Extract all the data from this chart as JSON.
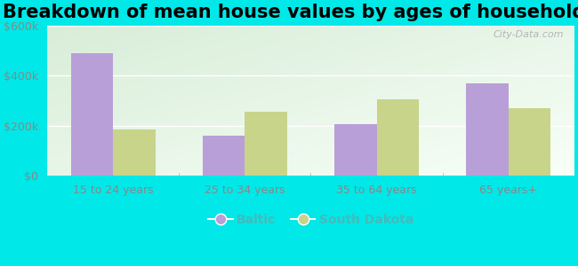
{
  "title": "Breakdown of mean house values by ages of householders",
  "categories": [
    "15 to 24 years",
    "25 to 34 years",
    "35 to 64 years",
    "65 years+"
  ],
  "baltic_values": [
    490000,
    160000,
    205000,
    370000
  ],
  "sd_values": [
    185000,
    255000,
    305000,
    270000
  ],
  "baltic_color": "#b99fd8",
  "sd_color": "#c8d48a",
  "ylim": [
    0,
    600000
  ],
  "yticks": [
    0,
    200000,
    400000,
    600000
  ],
  "ytick_labels": [
    "$0",
    "$200k",
    "$400k",
    "$600k"
  ],
  "legend_baltic": "Baltic",
  "legend_sd": "South Dakota",
  "bg_color": "#00e8e8",
  "plot_bg_top_color": "#d8edd8",
  "plot_bg_bottom_color": "#f8fff8",
  "watermark": "City-Data.com",
  "title_fontsize": 15,
  "bar_width": 0.32,
  "tick_label_color": "#888888",
  "legend_text_color": "#44bbbb"
}
